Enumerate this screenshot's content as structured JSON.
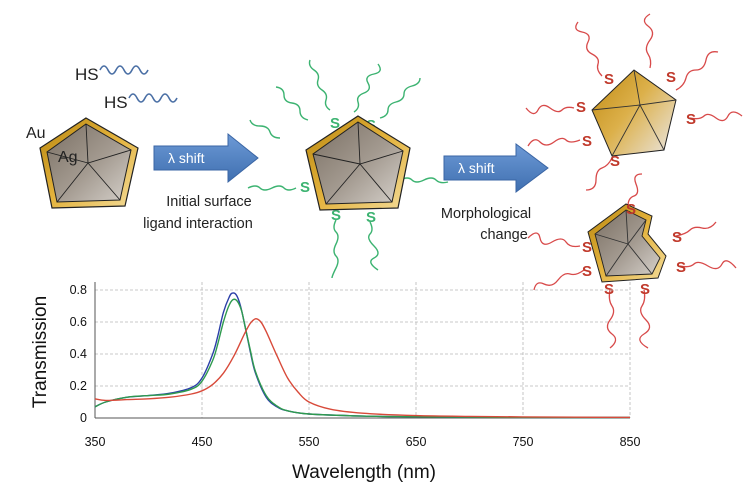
{
  "diagram": {
    "ligand_free_label": "HS",
    "metal_outer_label": "Au",
    "metal_core_label": "Ag",
    "sulfur_label": "S",
    "arrow1_label": "λ shift",
    "arrow2_label": "λ shift",
    "stage1_caption_line1": "Initial surface",
    "stage1_caption_line2": "ligand interaction",
    "stage2_caption_line1": "Morphological",
    "stage2_caption_line2": "change",
    "colors": {
      "free_ligand": "#4a6fa5",
      "bound_ligand_green": "#3cb371",
      "bound_ligand_red": "#d84a4a",
      "sulfur_red": "#c0392b",
      "arrow_fill": "#4f81bd",
      "gold": "#d9a520",
      "silver": "#8c8174"
    }
  },
  "chart_data": {
    "type": "line",
    "xlabel": "Wavelength (nm)",
    "ylabel": "Transmission",
    "xlim": [
      350,
      850
    ],
    "ylim": [
      0,
      0.85
    ],
    "x_ticks": [
      350,
      450,
      550,
      650,
      750,
      850
    ],
    "y_ticks": [
      0,
      0.2,
      0.4,
      0.6,
      0.8
    ],
    "grid": true,
    "series": [
      {
        "color": "#2b3fa8",
        "x": [
          350,
          360,
          380,
          400,
          420,
          440,
          450,
          460,
          465,
          470,
          475,
          478,
          482,
          486,
          490,
          495,
          500,
          510,
          520,
          530,
          550,
          600,
          650,
          700,
          750,
          800,
          850
        ],
        "y": [
          0.07,
          0.1,
          0.13,
          0.14,
          0.155,
          0.19,
          0.25,
          0.4,
          0.52,
          0.66,
          0.75,
          0.78,
          0.77,
          0.7,
          0.58,
          0.42,
          0.28,
          0.13,
          0.07,
          0.045,
          0.025,
          0.012,
          0.008,
          0.005,
          0.004,
          0.003,
          0.003
        ]
      },
      {
        "color": "#2e9a4e",
        "x": [
          350,
          360,
          380,
          400,
          420,
          440,
          450,
          460,
          465,
          470,
          475,
          479,
          483,
          487,
          490,
          495,
          500,
          510,
          520,
          530,
          550,
          600,
          650,
          700,
          750,
          800,
          850
        ],
        "y": [
          0.07,
          0.1,
          0.13,
          0.14,
          0.15,
          0.18,
          0.23,
          0.36,
          0.47,
          0.6,
          0.7,
          0.74,
          0.73,
          0.67,
          0.58,
          0.43,
          0.29,
          0.14,
          0.075,
          0.045,
          0.025,
          0.012,
          0.008,
          0.005,
          0.004,
          0.003,
          0.003
        ]
      },
      {
        "color": "#d84a3a",
        "x": [
          350,
          360,
          380,
          400,
          420,
          440,
          450,
          460,
          470,
          480,
          490,
          495,
          500,
          505,
          510,
          520,
          530,
          540,
          550,
          570,
          600,
          650,
          700,
          750,
          800,
          850
        ],
        "y": [
          0.12,
          0.11,
          0.115,
          0.12,
          0.13,
          0.15,
          0.17,
          0.21,
          0.28,
          0.39,
          0.53,
          0.59,
          0.62,
          0.6,
          0.54,
          0.39,
          0.25,
          0.16,
          0.1,
          0.055,
          0.03,
          0.015,
          0.01,
          0.007,
          0.005,
          0.004
        ]
      }
    ]
  }
}
